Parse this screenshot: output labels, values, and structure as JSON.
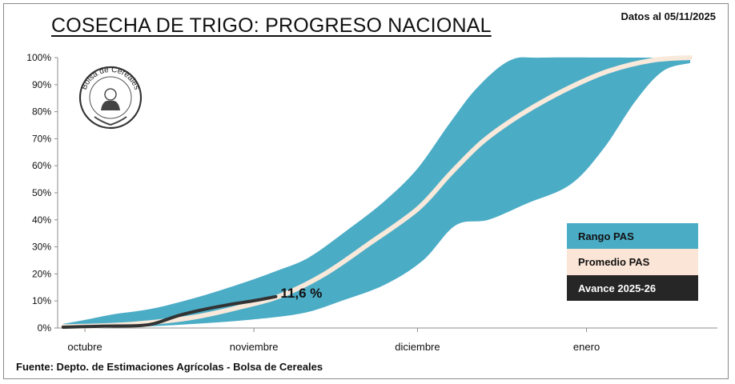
{
  "header": {
    "title": "COSECHA DE TRIGO: PROGRESO NACIONAL",
    "date_label": "Datos al 05/11/2025"
  },
  "footer": {
    "source": "Fuente: Depto. de Estimaciones Agrícolas - Bolsa de Cereales"
  },
  "logo": {
    "text": "Bolsa de Cereales"
  },
  "chart_data": {
    "type": "area",
    "x_unit": "days",
    "x_ticks": [
      {
        "label": "octubre",
        "day": 0
      },
      {
        "label": "noviembre",
        "day": 31
      },
      {
        "label": "diciembre",
        "day": 61
      },
      {
        "label": "enero",
        "day": 92
      }
    ],
    "xlim": [
      -5,
      116
    ],
    "ylim": [
      0,
      100
    ],
    "y_ticks": [
      "0%",
      "10%",
      "20%",
      "30%",
      "40%",
      "50%",
      "60%",
      "70%",
      "80%",
      "90%",
      "100%"
    ],
    "grid": false,
    "legend_position": "right",
    "series": [
      {
        "name": "Rango PAS",
        "kind": "range",
        "color": "#4bacc6",
        "upper": [
          [
            -4,
            1.5
          ],
          [
            0,
            3
          ],
          [
            5,
            5
          ],
          [
            12,
            7
          ],
          [
            20,
            11
          ],
          [
            28,
            16
          ],
          [
            35,
            21
          ],
          [
            41,
            26
          ],
          [
            48,
            36
          ],
          [
            55,
            47
          ],
          [
            61,
            59
          ],
          [
            67,
            76
          ],
          [
            72,
            89
          ],
          [
            78,
            99
          ],
          [
            84,
            100
          ],
          [
            100,
            100
          ],
          [
            111,
            100
          ]
        ],
        "lower": [
          [
            -4,
            0
          ],
          [
            10,
            0.5
          ],
          [
            20,
            1.5
          ],
          [
            30,
            3
          ],
          [
            40,
            5.5
          ],
          [
            47,
            10
          ],
          [
            55,
            16
          ],
          [
            62,
            25
          ],
          [
            68,
            38
          ],
          [
            74,
            40
          ],
          [
            81,
            46
          ],
          [
            89,
            53
          ],
          [
            95,
            66
          ],
          [
            101,
            84
          ],
          [
            106,
            95
          ],
          [
            111,
            98
          ]
        ]
      },
      {
        "name": "Promedio PAS",
        "kind": "line",
        "color": "#f8e9da",
        "points": [
          [
            -4,
            0.5
          ],
          [
            5,
            1
          ],
          [
            12,
            2
          ],
          [
            20,
            4
          ],
          [
            28,
            7.5
          ],
          [
            36,
            12
          ],
          [
            44,
            20
          ],
          [
            52,
            31
          ],
          [
            61,
            44
          ],
          [
            67,
            57
          ],
          [
            73,
            69
          ],
          [
            80,
            79
          ],
          [
            88,
            88
          ],
          [
            96,
            95
          ],
          [
            104,
            99
          ],
          [
            111,
            100
          ]
        ]
      },
      {
        "name": "Avance 2025-26",
        "kind": "line",
        "color": "#333333",
        "points": [
          [
            -4,
            0.3
          ],
          [
            0,
            0.5
          ],
          [
            4,
            0.7
          ],
          [
            10,
            0.9
          ],
          [
            13,
            1.8
          ],
          [
            17,
            4.5
          ],
          [
            21,
            6.5
          ],
          [
            26,
            8.5
          ],
          [
            31,
            10.1
          ],
          [
            35,
            11.6
          ]
        ]
      }
    ],
    "annotations": [
      {
        "text": "11,6 %",
        "x": 35,
        "y": 11.6
      }
    ]
  }
}
